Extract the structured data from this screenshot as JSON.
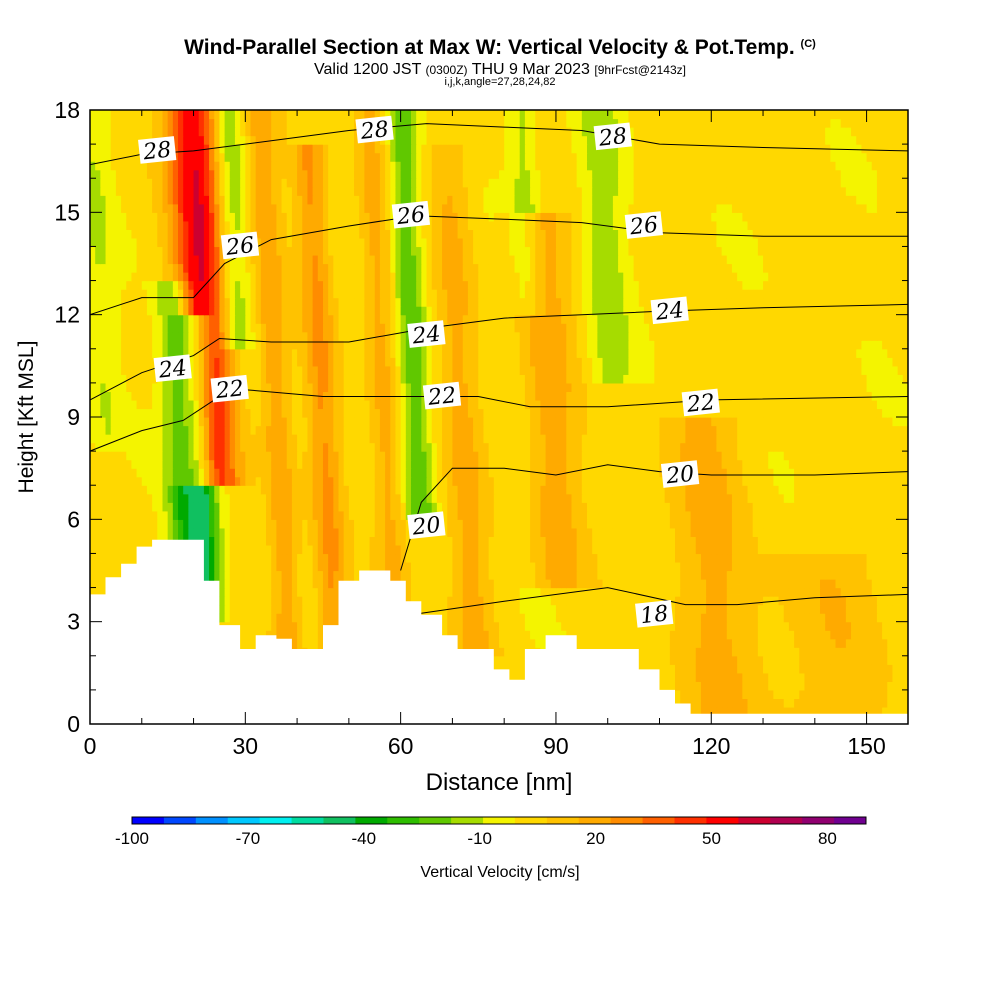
{
  "chart_data": {
    "type": "heatmap",
    "title": "Wind-Parallel Section at Max W: Vertical Velocity & Pot.Temp.",
    "title_tag": "(C)",
    "subtitle_main": "Valid 1200 JST",
    "subtitle_utc": "(0300Z)",
    "subtitle_date": "THU 9 Mar 2023",
    "subtitle_fcst": "[9hrFcst@2143z]",
    "subsubtitle": "i,j,k,angle=27,28,24,82",
    "xlabel": "Distance [nm]",
    "ylabel": "Height [Kft MSL]",
    "xlim": [
      0,
      158
    ],
    "ylim": [
      0,
      18
    ],
    "x_ticks": [
      0,
      30,
      60,
      90,
      120,
      150
    ],
    "y_ticks": [
      0,
      3,
      6,
      9,
      12,
      15,
      18
    ],
    "colorbar": {
      "label": "Vertical Velocity [cm/s]",
      "tick_labels": [
        "-100",
        "-70",
        "-40",
        "-10",
        "20",
        "50",
        "80"
      ],
      "tick_values": [
        -100,
        -70,
        -40,
        -10,
        20,
        50,
        80
      ],
      "range": [
        -100,
        90
      ],
      "colors": [
        "#0000ff",
        "#0047ff",
        "#0090ff",
        "#00c8ff",
        "#00f0f0",
        "#00dca0",
        "#10c060",
        "#00aa00",
        "#2ebd00",
        "#60c800",
        "#a6dc00",
        "#f4f400",
        "#ffd800",
        "#ffc200",
        "#ffaa00",
        "#ff8c00",
        "#ff6000",
        "#ff3000",
        "#ff0000",
        "#cc0030",
        "#b00050",
        "#900070",
        "#700090"
      ]
    },
    "updraft_bands": [
      {
        "x": 23,
        "w": 5,
        "peak": 55,
        "y_range": [
          8,
          18
        ]
      },
      {
        "x": 36,
        "w": 3,
        "peak": 20,
        "y_range": [
          2,
          18
        ]
      },
      {
        "x": 45,
        "w": 3,
        "peak": 22,
        "y_range": [
          2,
          16
        ]
      },
      {
        "x": 57,
        "w": 3,
        "peak": 18,
        "y_range": [
          4,
          18
        ]
      },
      {
        "x": 72,
        "w": 4,
        "peak": 15,
        "y_range": [
          3,
          16
        ]
      },
      {
        "x": 89,
        "w": 5,
        "peak": 18,
        "y_range": [
          5,
          14
        ]
      },
      {
        "x": 118,
        "w": 8,
        "peak": 15,
        "y_range": [
          1,
          8
        ]
      },
      {
        "x": 140,
        "w": 10,
        "peak": 12,
        "y_range": [
          0,
          4
        ]
      }
    ],
    "downdraft_bands": [
      {
        "x": 21,
        "w": 3,
        "min": -45,
        "y_range": [
          4,
          11
        ]
      },
      {
        "x": 17,
        "w": 3,
        "min": -30,
        "y_range": [
          5,
          12
        ]
      },
      {
        "x": 29,
        "w": 3,
        "min": -20,
        "y_range": [
          12,
          18
        ]
      },
      {
        "x": 63,
        "w": 3,
        "min": -25,
        "y_range": [
          7,
          18
        ]
      },
      {
        "x": 86,
        "w": 3,
        "min": -15,
        "y_range": [
          13,
          18
        ]
      },
      {
        "x": 101,
        "w": 4,
        "min": -15,
        "y_range": [
          11,
          18
        ]
      },
      {
        "x": 3,
        "w": 3,
        "min": -10,
        "y_range": [
          9,
          17
        ]
      }
    ],
    "isentropes": [
      {
        "value": 18,
        "labels": [
          {
            "x": 109,
            "y": 3.2,
            "text": "18"
          }
        ],
        "points": [
          [
            62,
            3.2
          ],
          [
            80,
            3.6
          ],
          [
            100,
            4.0
          ],
          [
            115,
            3.5
          ],
          [
            125,
            3.5
          ],
          [
            140,
            3.7
          ],
          [
            158,
            3.8
          ]
        ]
      },
      {
        "value": 20,
        "labels": [
          {
            "x": 65,
            "y": 5.8,
            "text": "20"
          },
          {
            "x": 114,
            "y": 7.3,
            "text": "20"
          }
        ],
        "points": [
          [
            60,
            4.5
          ],
          [
            64,
            6.5
          ],
          [
            70,
            7.5
          ],
          [
            80,
            7.5
          ],
          [
            90,
            7.3
          ],
          [
            100,
            7.6
          ],
          [
            110,
            7.4
          ],
          [
            120,
            7.3
          ],
          [
            140,
            7.3
          ],
          [
            158,
            7.4
          ]
        ]
      },
      {
        "value": 22,
        "labels": [
          {
            "x": 27,
            "y": 9.8,
            "text": "22"
          },
          {
            "x": 68,
            "y": 9.6,
            "text": "22"
          },
          {
            "x": 118,
            "y": 9.4,
            "text": "22"
          }
        ],
        "points": [
          [
            0,
            8.0
          ],
          [
            10,
            8.6
          ],
          [
            18,
            8.9
          ],
          [
            24,
            9.5
          ],
          [
            30,
            9.8
          ],
          [
            45,
            9.6
          ],
          [
            60,
            9.6
          ],
          [
            75,
            9.6
          ],
          [
            85,
            9.3
          ],
          [
            100,
            9.3
          ],
          [
            120,
            9.5
          ],
          [
            158,
            9.6
          ]
        ]
      },
      {
        "value": 24,
        "labels": [
          {
            "x": 16,
            "y": 10.4,
            "text": "24"
          },
          {
            "x": 65,
            "y": 11.4,
            "text": "24"
          },
          {
            "x": 112,
            "y": 12.1,
            "text": "24"
          }
        ],
        "points": [
          [
            0,
            9.5
          ],
          [
            10,
            10.3
          ],
          [
            20,
            10.8
          ],
          [
            25,
            11.3
          ],
          [
            35,
            11.2
          ],
          [
            50,
            11.2
          ],
          [
            65,
            11.6
          ],
          [
            80,
            11.9
          ],
          [
            95,
            12.0
          ],
          [
            110,
            12.1
          ],
          [
            130,
            12.2
          ],
          [
            158,
            12.3
          ]
        ]
      },
      {
        "value": 26,
        "labels": [
          {
            "x": 29,
            "y": 14.0,
            "text": "26"
          },
          {
            "x": 62,
            "y": 14.9,
            "text": "26"
          },
          {
            "x": 107,
            "y": 14.6,
            "text": "26"
          }
        ],
        "points": [
          [
            0,
            12.0
          ],
          [
            10,
            12.5
          ],
          [
            20,
            12.5
          ],
          [
            26,
            13.5
          ],
          [
            35,
            14.2
          ],
          [
            50,
            14.6
          ],
          [
            63,
            14.9
          ],
          [
            80,
            14.8
          ],
          [
            95,
            14.7
          ],
          [
            110,
            14.4
          ],
          [
            130,
            14.3
          ],
          [
            158,
            14.3
          ]
        ]
      },
      {
        "value": 28,
        "labels": [
          {
            "x": 13,
            "y": 16.8,
            "text": "28"
          },
          {
            "x": 55,
            "y": 17.4,
            "text": "28"
          },
          {
            "x": 101,
            "y": 17.2,
            "text": "28"
          }
        ],
        "points": [
          [
            0,
            16.4
          ],
          [
            10,
            16.7
          ],
          [
            20,
            16.8
          ],
          [
            35,
            17.1
          ],
          [
            50,
            17.4
          ],
          [
            65,
            17.6
          ],
          [
            80,
            17.5
          ],
          [
            95,
            17.4
          ],
          [
            110,
            17.0
          ],
          [
            130,
            16.9
          ],
          [
            158,
            16.8
          ]
        ]
      }
    ],
    "terrain": [
      [
        0,
        3.8
      ],
      [
        3,
        3.8
      ],
      [
        3,
        4.3
      ],
      [
        6,
        4.3
      ],
      [
        6,
        4.7
      ],
      [
        9,
        4.7
      ],
      [
        9,
        5.2
      ],
      [
        12,
        5.2
      ],
      [
        12,
        5.4
      ],
      [
        22,
        5.4
      ],
      [
        22,
        4.2
      ],
      [
        25,
        4.2
      ],
      [
        25,
        2.9
      ],
      [
        29,
        2.9
      ],
      [
        29,
        2.2
      ],
      [
        32,
        2.2
      ],
      [
        32,
        2.6
      ],
      [
        36,
        2.6
      ],
      [
        36,
        2.5
      ],
      [
        39,
        2.5
      ],
      [
        39,
        2.2
      ],
      [
        45,
        2.2
      ],
      [
        45,
        2.9
      ],
      [
        48,
        2.9
      ],
      [
        48,
        4.2
      ],
      [
        52,
        4.2
      ],
      [
        52,
        4.5
      ],
      [
        58,
        4.5
      ],
      [
        58,
        4.2
      ],
      [
        61,
        4.2
      ],
      [
        61,
        3.6
      ],
      [
        64,
        3.6
      ],
      [
        64,
        3.2
      ],
      [
        68,
        3.2
      ],
      [
        68,
        2.6
      ],
      [
        71,
        2.6
      ],
      [
        71,
        2.2
      ],
      [
        78,
        2.2
      ],
      [
        78,
        1.6
      ],
      [
        81,
        1.6
      ],
      [
        81,
        1.3
      ],
      [
        84,
        1.3
      ],
      [
        84,
        2.2
      ],
      [
        88,
        2.2
      ],
      [
        88,
        2.6
      ],
      [
        94,
        2.6
      ],
      [
        94,
        2.2
      ],
      [
        106,
        2.2
      ],
      [
        106,
        1.6
      ],
      [
        110,
        1.6
      ],
      [
        110,
        1.0
      ],
      [
        113,
        1.0
      ],
      [
        113,
        0.6
      ],
      [
        116,
        0.6
      ],
      [
        116,
        0.3
      ],
      [
        158,
        0.3
      ]
    ]
  }
}
